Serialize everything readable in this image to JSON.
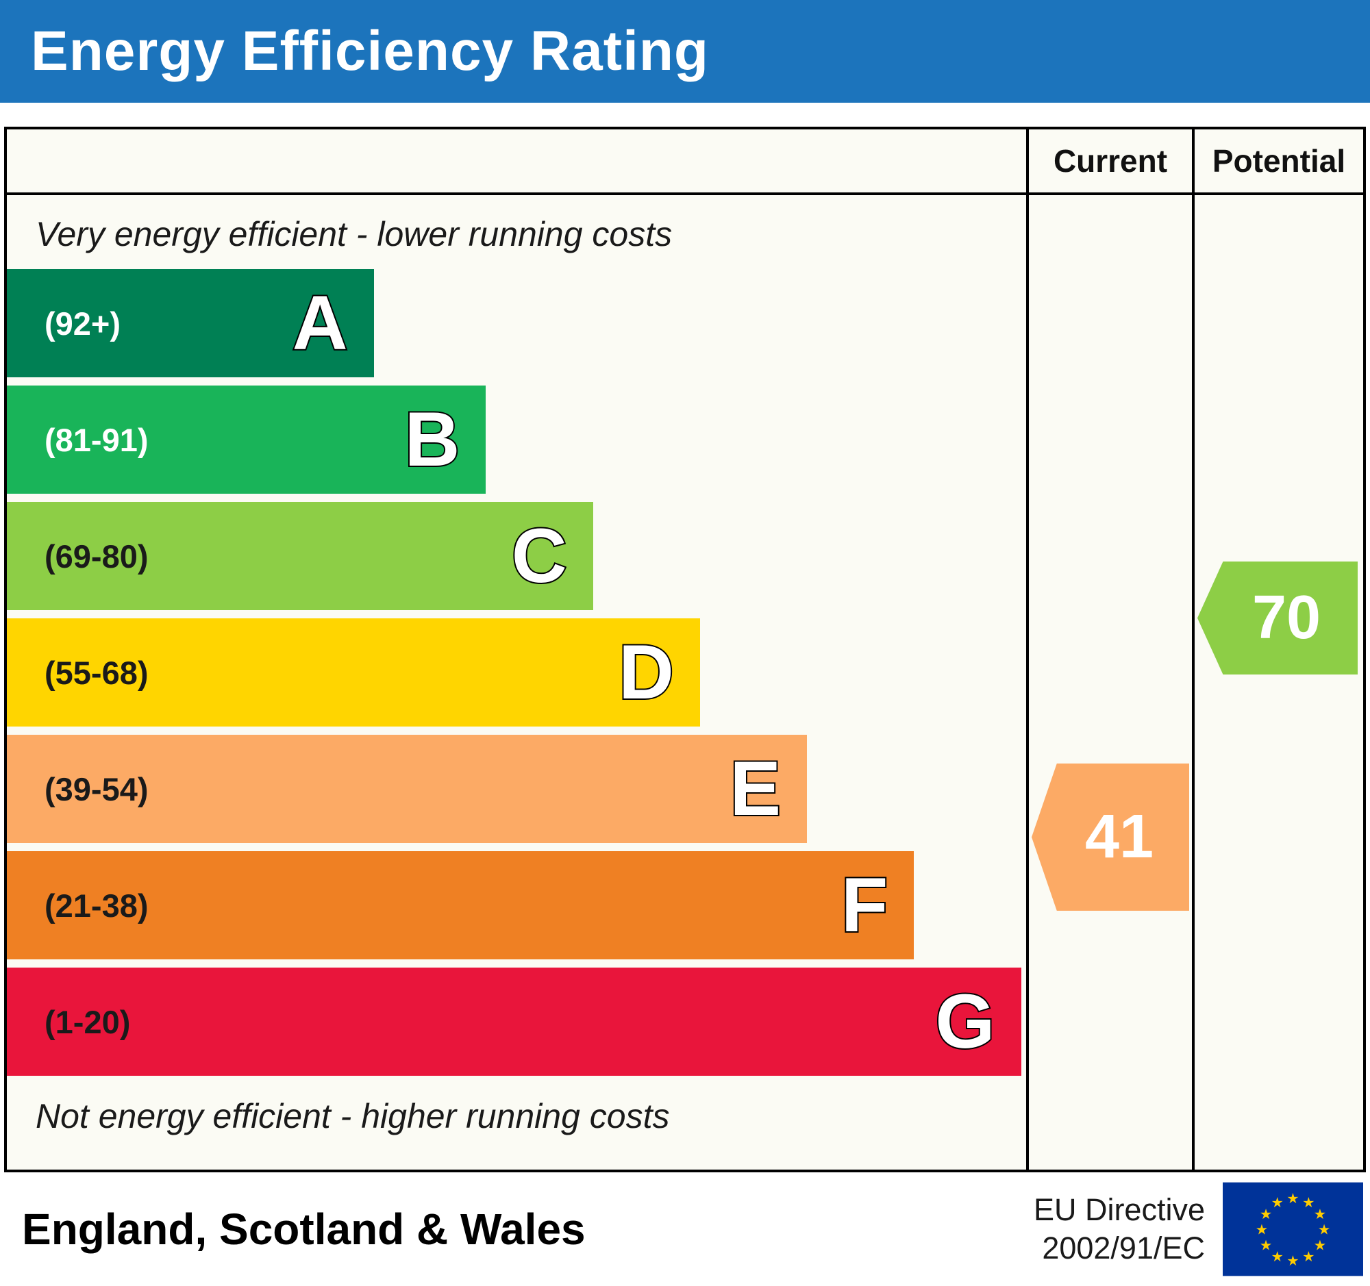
{
  "header": {
    "title": "Energy Efficiency Rating",
    "bg": "#1c74bc",
    "text_color": "#ffffff"
  },
  "columns": {
    "current_label": "Current",
    "potential_label": "Potential"
  },
  "chart_data": {
    "type": "bar",
    "title": "Energy Efficiency Rating",
    "top_note": "Very energy efficient - lower running costs",
    "bottom_note": "Not energy efficient - higher running costs",
    "score_scale": [
      1,
      100
    ],
    "bands": [
      {
        "letter": "A",
        "range_label": "(92+)",
        "min": 92,
        "max": 100,
        "color": "#008054",
        "width_pct": 36,
        "range_color": "#ffffff"
      },
      {
        "letter": "B",
        "range_label": "(81-91)",
        "min": 81,
        "max": 91,
        "color": "#19b459",
        "width_pct": 47,
        "range_color": "#ffffff"
      },
      {
        "letter": "C",
        "range_label": "(69-80)",
        "min": 69,
        "max": 80,
        "color": "#8dce46",
        "width_pct": 57.5,
        "range_color": "#1a1a1a"
      },
      {
        "letter": "D",
        "range_label": "(55-68)",
        "min": 55,
        "max": 68,
        "color": "#ffd500",
        "width_pct": 68,
        "range_color": "#1a1a1a"
      },
      {
        "letter": "E",
        "range_label": "(39-54)",
        "min": 39,
        "max": 54,
        "color": "#fcaa65",
        "width_pct": 78.5,
        "range_color": "#1a1a1a"
      },
      {
        "letter": "F",
        "range_label": "(21-38)",
        "min": 21,
        "max": 38,
        "color": "#ef8023",
        "width_pct": 89,
        "range_color": "#1a1a1a"
      },
      {
        "letter": "G",
        "range_label": "(1-20)",
        "min": 1,
        "max": 20,
        "color": "#e9153b",
        "width_pct": 99.5,
        "range_color": "#1a1a1a"
      }
    ],
    "current": {
      "value": 41,
      "band": "E",
      "color": "#fcaa65"
    },
    "potential": {
      "value": 70,
      "band": "C",
      "color": "#8dce46"
    }
  },
  "footer": {
    "region": "England, Scotland & Wales",
    "directive_line1": "EU Directive",
    "directive_line2": "2002/91/EC",
    "eu_flag": {
      "bg": "#003399",
      "star_color": "#ffcc00"
    }
  }
}
